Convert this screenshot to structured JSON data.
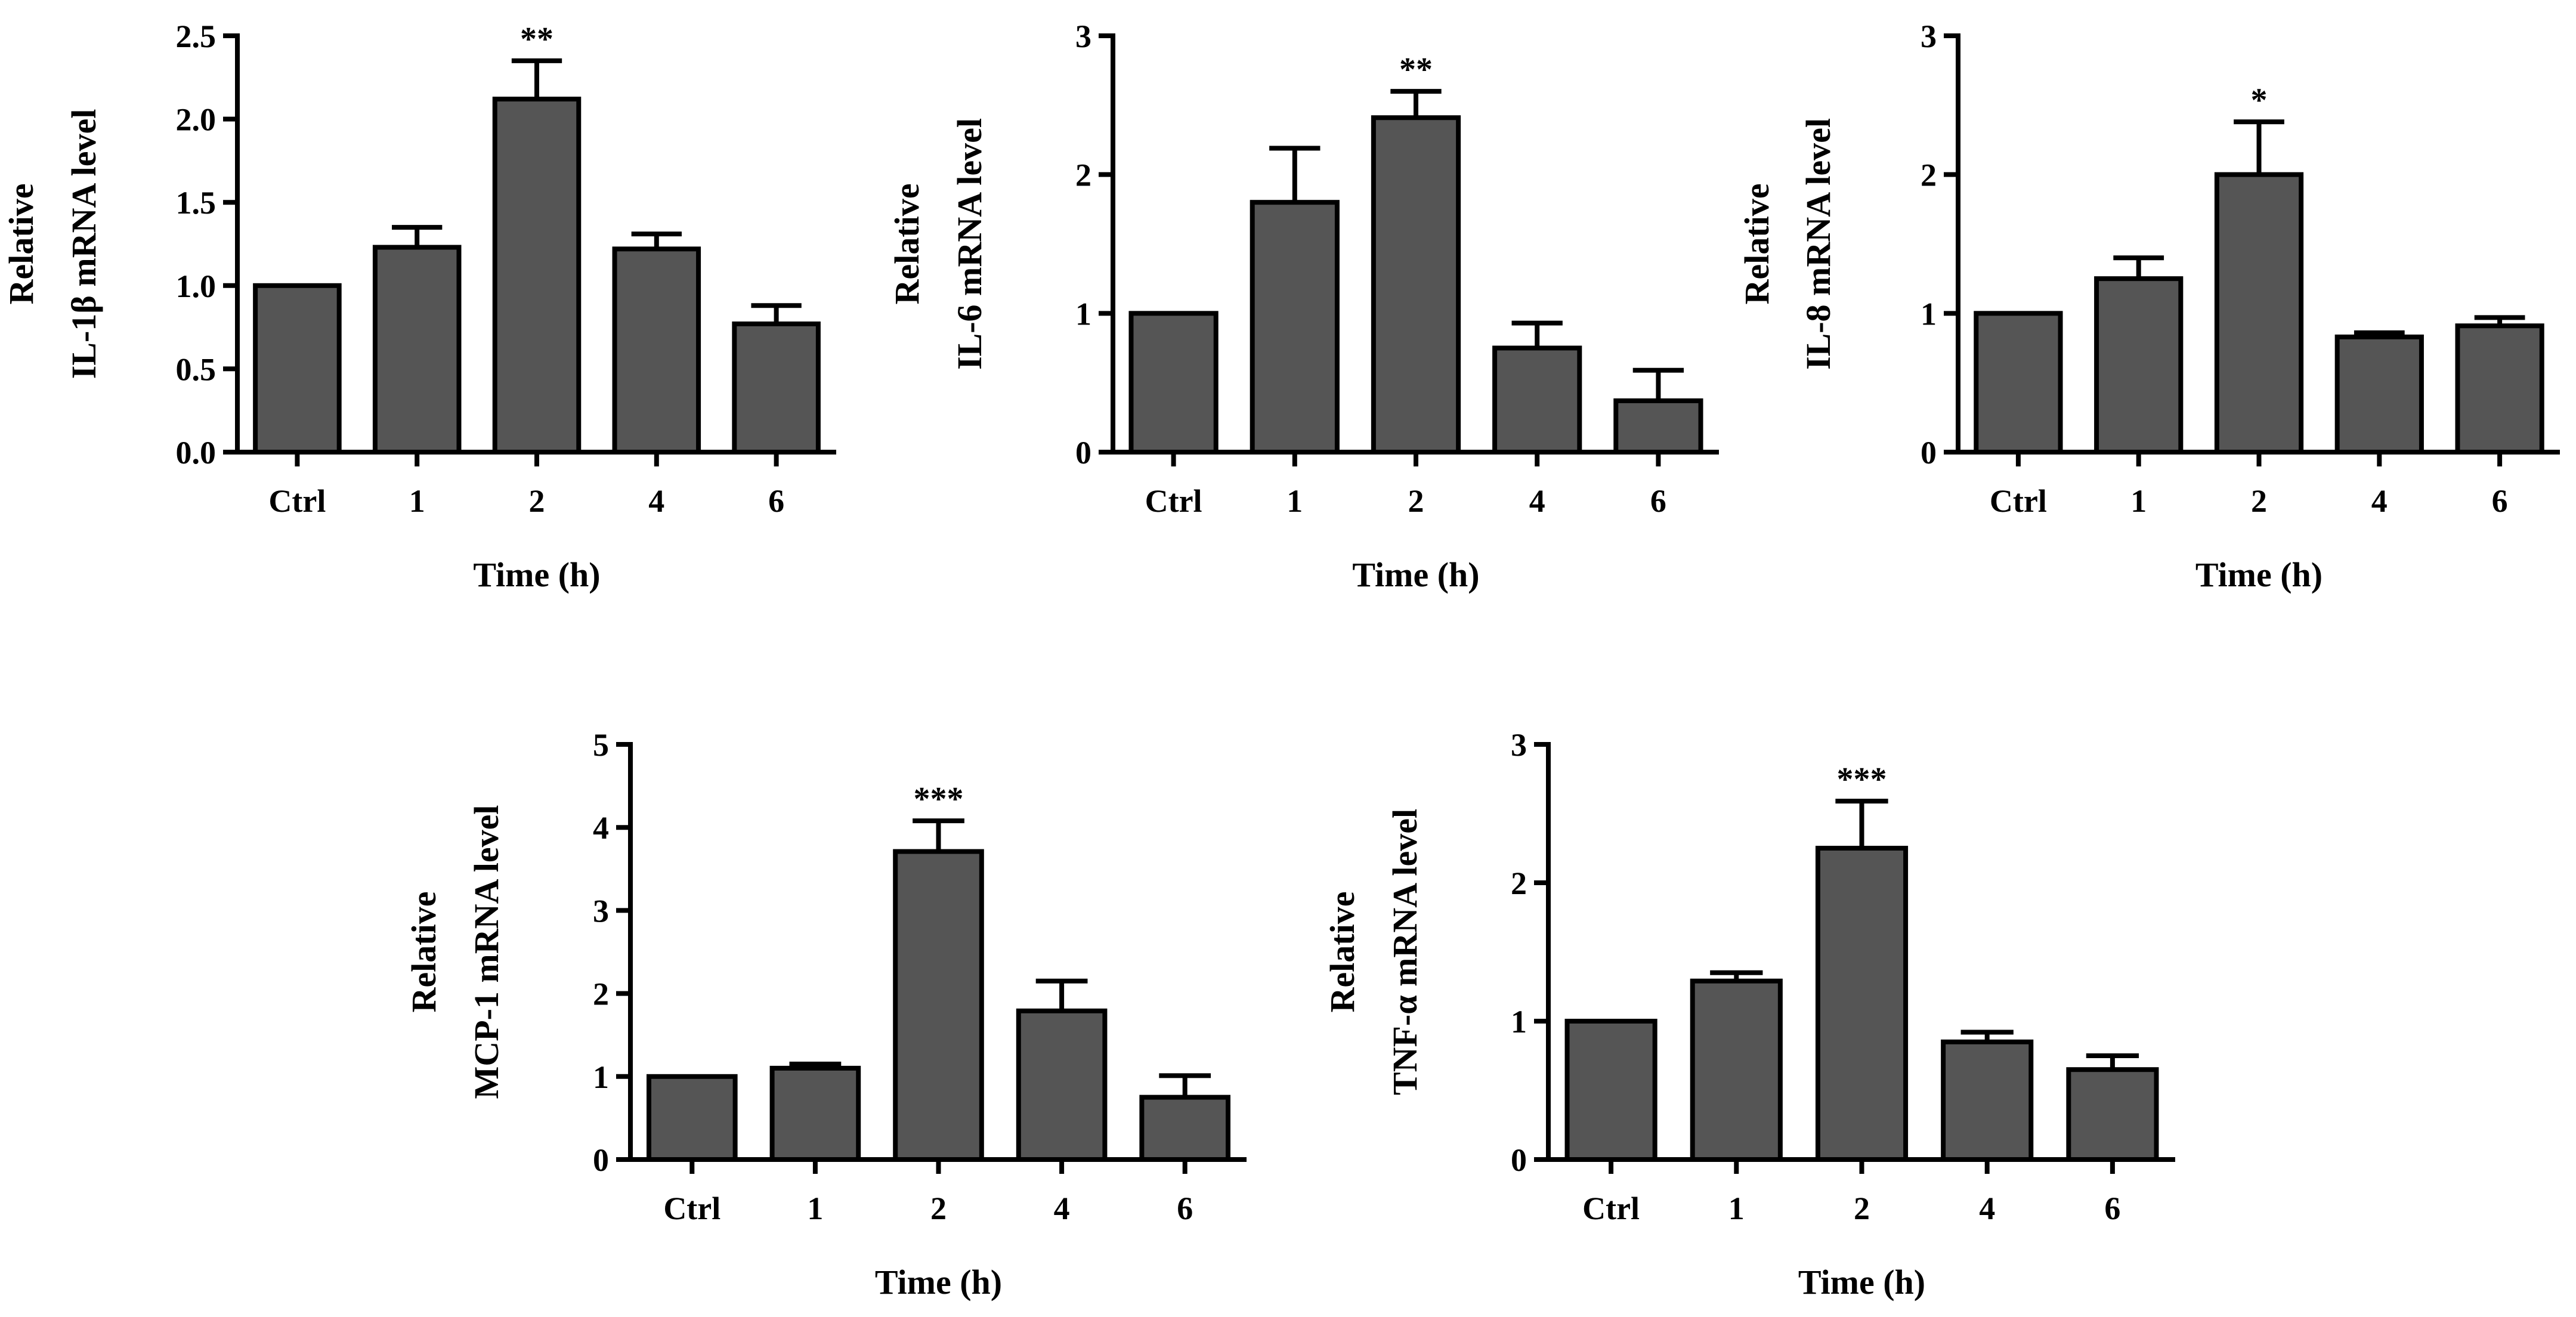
{
  "bar_color": "#555555",
  "outline_color": "#000000",
  "chart_data": [
    {
      "type": "bar",
      "ylabel_lines": [
        "Relative",
        "IL-1β mRNA level"
      ],
      "xlabel": "Time (h)",
      "categories": [
        "Ctrl",
        "1",
        "2",
        "4",
        "6"
      ],
      "values": [
        1.0,
        1.23,
        2.12,
        1.22,
        0.77
      ],
      "errors": [
        0.0,
        0.12,
        0.23,
        0.09,
        0.11
      ],
      "significance": [
        "",
        "",
        "**",
        "",
        ""
      ],
      "ylim": [
        0,
        2.5
      ],
      "yticks": [
        "0.0",
        "0.5",
        "1.0",
        "1.5",
        "2.0",
        "2.5"
      ],
      "grid": false
    },
    {
      "type": "bar",
      "ylabel_lines": [
        "Relative",
        "IL-6 mRNA level"
      ],
      "xlabel": "Time (h)",
      "categories": [
        "Ctrl",
        "1",
        "2",
        "4",
        "6"
      ],
      "values": [
        1.0,
        1.8,
        2.41,
        0.75,
        0.37
      ],
      "errors": [
        0.0,
        0.39,
        0.19,
        0.18,
        0.22
      ],
      "significance": [
        "",
        "",
        "**",
        "",
        ""
      ],
      "ylim": [
        0,
        3
      ],
      "yticks": [
        "0",
        "1",
        "2",
        "3"
      ],
      "grid": false
    },
    {
      "type": "bar",
      "ylabel_lines": [
        "Relative",
        "IL-8 mRNA level"
      ],
      "xlabel": "Time (h)",
      "categories": [
        "Ctrl",
        "1",
        "2",
        "4",
        "6"
      ],
      "values": [
        1.0,
        1.25,
        2.0,
        0.83,
        0.91
      ],
      "errors": [
        0.0,
        0.15,
        0.38,
        0.03,
        0.06
      ],
      "significance": [
        "",
        "",
        "*",
        "",
        ""
      ],
      "ylim": [
        0,
        3
      ],
      "yticks": [
        "0",
        "1",
        "2",
        "3"
      ],
      "grid": false
    },
    {
      "type": "bar",
      "ylabel_lines": [
        "Relative",
        "MCP-1 mRNA level"
      ],
      "xlabel": "Time (h)",
      "categories": [
        "Ctrl",
        "1",
        "2",
        "4",
        "6"
      ],
      "values": [
        1.0,
        1.1,
        3.71,
        1.79,
        0.75
      ],
      "errors": [
        0.0,
        0.05,
        0.37,
        0.36,
        0.26
      ],
      "significance": [
        "",
        "",
        "***",
        "",
        ""
      ],
      "ylim": [
        0,
        5
      ],
      "yticks": [
        "0",
        "1",
        "2",
        "3",
        "4",
        "5"
      ],
      "grid": false
    },
    {
      "type": "bar",
      "ylabel_lines": [
        "Relative",
        "TNF-α mRNA level"
      ],
      "xlabel": "Time (h)",
      "categories": [
        "Ctrl",
        "1",
        "2",
        "4",
        "6"
      ],
      "values": [
        1.0,
        1.29,
        2.25,
        0.85,
        0.65
      ],
      "errors": [
        0.0,
        0.06,
        0.34,
        0.07,
        0.1
      ],
      "significance": [
        "",
        "",
        "***",
        "",
        ""
      ],
      "ylim": [
        0,
        3
      ],
      "yticks": [
        "0",
        "1",
        "2",
        "3"
      ],
      "grid": false
    }
  ]
}
